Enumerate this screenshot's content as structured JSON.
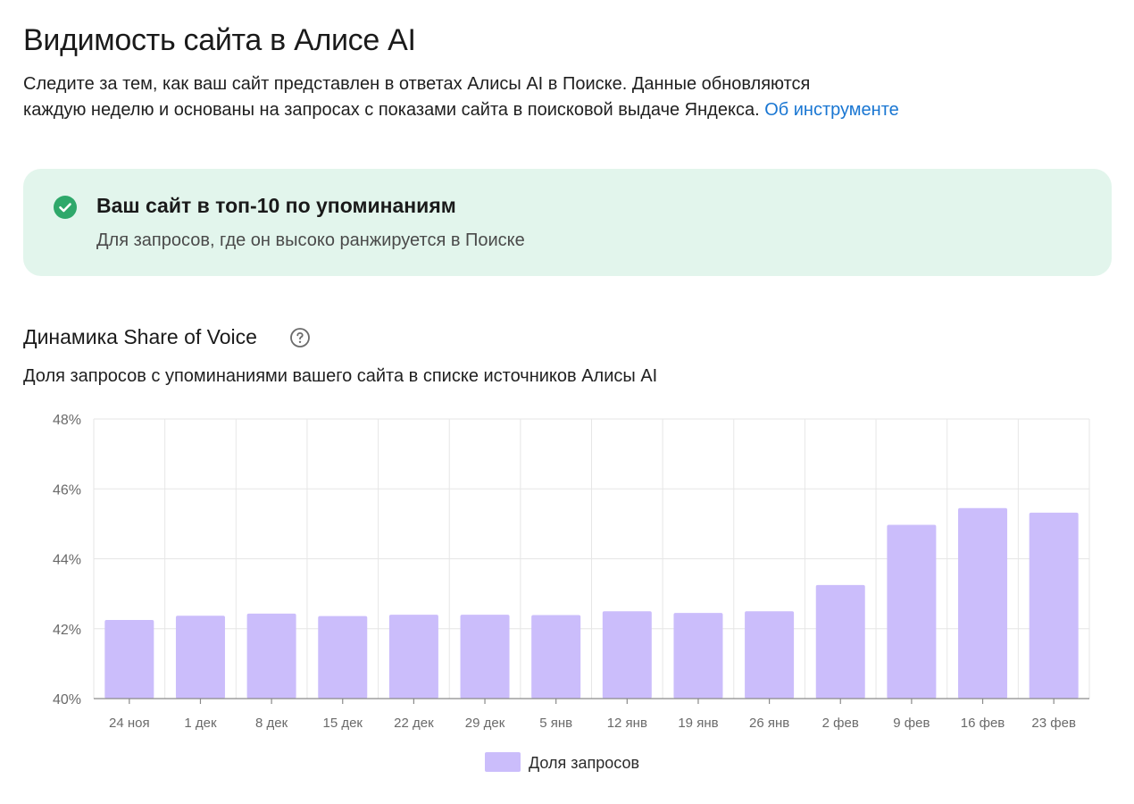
{
  "header": {
    "title": "Видимость сайта в Алисе AI",
    "intro_line1": "Следите за тем, как ваш сайт представлен в ответах Алисы AI в Поиске. Данные обновляются",
    "intro_line2": "каждую неделю и основаны на запросах с показами сайта в поисковой выдаче Яндекса.",
    "about_link": "Об инструменте",
    "link_color": "#1976d2"
  },
  "status_card": {
    "icon": "check-circle-icon",
    "icon_color": "#2ea86a",
    "background": "#e2f5ec",
    "title": "Ваш сайт в топ-10 по упоминаниям",
    "subtitle": "Для запросов, где он высоко ранжируется в Поиске"
  },
  "section": {
    "title": "Динамика Share of Voice",
    "help_icon": "question-circle-icon",
    "subtitle": "Доля запросов с упоминаниями вашего сайта в списке источников Алисы AI"
  },
  "chart_data": {
    "type": "bar",
    "categories": [
      "24 ноя",
      "1 дек",
      "8 дек",
      "15 дек",
      "22 дек",
      "29 дек",
      "5 янв",
      "12 янв",
      "19 янв",
      "26 янв",
      "2 фев",
      "9 фев",
      "16 фев",
      "23 фев"
    ],
    "series": [
      {
        "name": "Доля запросов",
        "color": "#cbbdfb",
        "values": [
          42.25,
          42.37,
          42.43,
          42.36,
          42.4,
          42.4,
          42.39,
          42.5,
          42.45,
          42.5,
          43.25,
          44.97,
          45.45,
          45.32
        ]
      }
    ],
    "ylim": [
      40,
      48
    ],
    "yticks": [
      40,
      42,
      44,
      46,
      48
    ],
    "ytick_labels": [
      "40%",
      "42%",
      "44%",
      "46%",
      "48%"
    ],
    "xlabel": "",
    "ylabel": "",
    "grid": true,
    "legend": "bottom-center"
  }
}
